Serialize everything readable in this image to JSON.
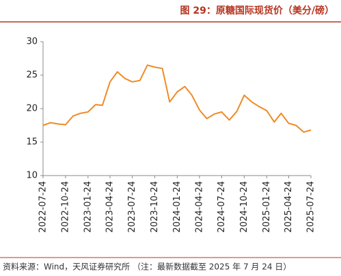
{
  "chart_data": {
    "type": "line",
    "title": "图 29：原糖国际现货价（美分/磅）",
    "source": "资料来源：Wind，天风证券研究所 （注：最新数据截至 2025 年 7 月 24 日）",
    "x": [
      "2022-07-24",
      "2022-08-24",
      "2022-09-24",
      "2022-10-24",
      "2022-11-24",
      "2022-12-24",
      "2023-01-24",
      "2023-02-24",
      "2023-03-24",
      "2023-04-24",
      "2023-05-24",
      "2023-06-24",
      "2023-07-24",
      "2023-08-24",
      "2023-09-24",
      "2023-10-24",
      "2023-11-24",
      "2023-12-24",
      "2024-01-24",
      "2024-02-24",
      "2024-03-24",
      "2024-04-24",
      "2024-05-24",
      "2024-06-24",
      "2024-07-24",
      "2024-08-24",
      "2024-09-24",
      "2024-10-24",
      "2024-11-24",
      "2024-12-24",
      "2025-01-24",
      "2025-02-24",
      "2025-03-24",
      "2025-04-24",
      "2025-05-24",
      "2025-06-24",
      "2025-07-24"
    ],
    "series": [
      {
        "name": "原糖国际现货价",
        "color": "#f08a24",
        "values": [
          17.5,
          17.9,
          17.7,
          17.6,
          18.9,
          19.3,
          19.5,
          20.6,
          20.5,
          24.0,
          25.5,
          24.5,
          24.0,
          24.2,
          26.5,
          26.2,
          26.0,
          21.0,
          22.5,
          23.3,
          22.0,
          19.8,
          18.5,
          19.2,
          19.5,
          18.3,
          19.6,
          22.0,
          21.0,
          20.3,
          19.7,
          18.0,
          19.3,
          17.8,
          17.5,
          16.5,
          16.8
        ]
      }
    ],
    "xlim": [
      "2022-07-24",
      "2025-07-24"
    ],
    "xticks": [
      "2022-07-24",
      "2022-10-24",
      "2023-01-24",
      "2023-04-24",
      "2023-07-24",
      "2023-10-24",
      "2024-01-24",
      "2024-04-24",
      "2024-07-24",
      "2024-10-24",
      "2025-01-24",
      "2025-04-24",
      "2025-07-24"
    ],
    "ylim": [
      10,
      30
    ],
    "yticks": [
      10,
      15,
      20,
      25,
      30
    ]
  }
}
